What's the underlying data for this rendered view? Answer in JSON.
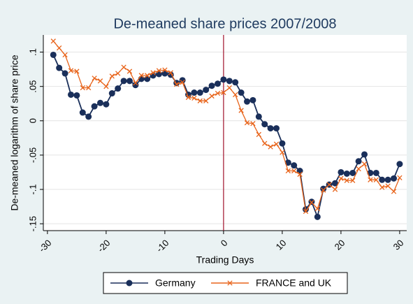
{
  "chart_data": {
    "type": "line",
    "title": "De-meaned share prices 2007/2008",
    "x_label": "Trading Days",
    "y_label": "De-meaned logarithm of share price",
    "x": [
      -29,
      -28,
      -27,
      -26,
      -25,
      -24,
      -23,
      -22,
      -21,
      -20,
      -19,
      -18,
      -17,
      -16,
      -15,
      -14,
      -13,
      -12,
      -11,
      -10,
      -9,
      -8,
      -7,
      -6,
      -5,
      -4,
      -3,
      -2,
      -1,
      0,
      1,
      2,
      3,
      4,
      5,
      6,
      7,
      8,
      9,
      10,
      11,
      12,
      13,
      14,
      15,
      16,
      17,
      18,
      19,
      20,
      21,
      22,
      23,
      24,
      25,
      26,
      27,
      28,
      29,
      30
    ],
    "series": [
      {
        "name": "Germany",
        "color": "#1a2f5a",
        "marker": "circle",
        "values": [
          0.096,
          0.077,
          0.069,
          0.038,
          0.037,
          0.012,
          0.006,
          0.021,
          0.026,
          0.024,
          0.04,
          0.047,
          0.058,
          0.058,
          0.052,
          0.061,
          0.061,
          0.066,
          0.068,
          0.069,
          0.067,
          0.055,
          0.059,
          0.038,
          0.041,
          0.041,
          0.045,
          0.051,
          0.054,
          0.06,
          0.058,
          0.056,
          0.041,
          0.028,
          0.03,
          0.006,
          -0.005,
          -0.011,
          -0.011,
          -0.033,
          -0.061,
          -0.065,
          -0.073,
          -0.129,
          -0.118,
          -0.14,
          -0.099,
          -0.093,
          -0.091,
          -0.075,
          -0.077,
          -0.076,
          -0.059,
          -0.049,
          -0.076,
          -0.076,
          -0.086,
          -0.086,
          -0.084,
          -0.063
        ]
      },
      {
        "name": "FRANCE and UK",
        "color": "#e8641b",
        "marker": "x",
        "values": [
          0.116,
          0.106,
          0.096,
          0.073,
          0.072,
          0.048,
          0.048,
          0.062,
          0.058,
          0.05,
          0.065,
          0.069,
          0.078,
          0.072,
          0.055,
          0.066,
          0.066,
          0.07,
          0.073,
          0.074,
          0.07,
          0.053,
          0.056,
          0.034,
          0.033,
          0.029,
          0.029,
          0.036,
          0.04,
          0.041,
          0.048,
          0.038,
          0.015,
          -0.003,
          -0.004,
          -0.02,
          -0.033,
          -0.038,
          -0.034,
          -0.046,
          -0.073,
          -0.073,
          -0.078,
          -0.132,
          -0.119,
          -0.128,
          -0.101,
          -0.093,
          -0.1,
          -0.084,
          -0.087,
          -0.087,
          -0.07,
          -0.063,
          -0.086,
          -0.086,
          -0.097,
          -0.095,
          -0.103,
          -0.083
        ]
      }
    ],
    "xlim": [
      -30.7,
      31.2
    ],
    "ylim": [
      -0.16,
      0.125
    ],
    "xticks": [
      -30,
      -20,
      -10,
      0,
      10,
      20,
      30
    ],
    "yticks": [
      {
        "value": -0.15,
        "label": "-.15"
      },
      {
        "value": -0.1,
        "label": "-.1"
      },
      {
        "value": -0.05,
        "label": "-.05"
      },
      0,
      {
        "value": 0.05,
        "label": ".05"
      },
      {
        "value": 0.1,
        "label": ".1"
      }
    ],
    "xline": 0,
    "xline_color": "#a0102a",
    "grid": true,
    "legend": "bottom"
  }
}
